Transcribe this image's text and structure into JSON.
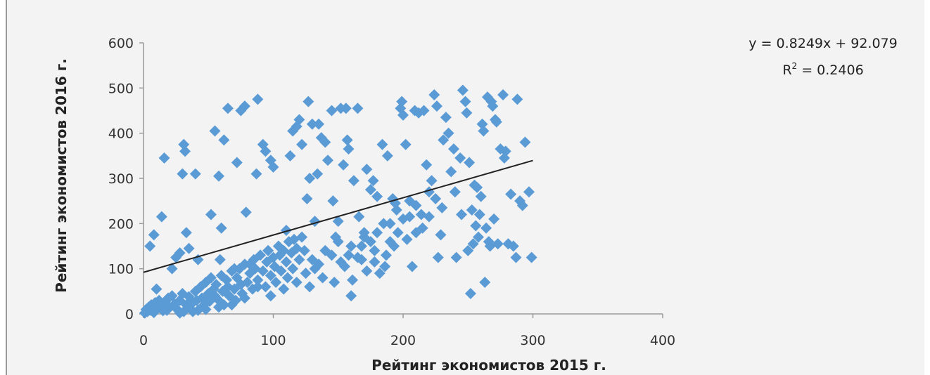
{
  "chart_data": {
    "type": "scatter",
    "title": "",
    "xlabel": "Рейтинг экономистов 2015 г.",
    "ylabel": "Рейтинг экономистов 2016 г.",
    "xlim": [
      0,
      400
    ],
    "ylim": [
      0,
      600
    ],
    "x_ticks": [
      "0",
      "100",
      "200",
      "300",
      "400"
    ],
    "y_ticks": [
      "0",
      "100",
      "200",
      "300",
      "400",
      "500",
      "600"
    ],
    "grid": false,
    "marker_color": "#5b9bd5",
    "trendline_color": "#222222",
    "trendline": {
      "slope": 0.8249,
      "intercept": 92.079,
      "x_range": [
        0,
        300
      ],
      "equation": "y = 0.8249x + 92.079",
      "r_squared_label": "R",
      "r_squared_exponent": "2",
      "r_squared_value": " = 0.2406"
    },
    "points": [
      [
        1,
        2
      ],
      [
        2,
        10
      ],
      [
        3,
        5
      ],
      [
        4,
        15
      ],
      [
        5,
        8
      ],
      [
        6,
        20
      ],
      [
        8,
        3
      ],
      [
        9,
        25
      ],
      [
        10,
        12
      ],
      [
        12,
        30
      ],
      [
        14,
        18
      ],
      [
        15,
        7
      ],
      [
        17,
        28
      ],
      [
        19,
        35
      ],
      [
        20,
        15
      ],
      [
        22,
        40
      ],
      [
        24,
        22
      ],
      [
        26,
        10
      ],
      [
        28,
        30
      ],
      [
        30,
        45
      ],
      [
        31,
        5
      ],
      [
        33,
        20
      ],
      [
        35,
        38
      ],
      [
        36,
        12
      ],
      [
        38,
        25
      ],
      [
        40,
        50
      ],
      [
        41,
        30
      ],
      [
        42,
        8
      ],
      [
        44,
        60
      ],
      [
        45,
        35
      ],
      [
        46,
        18
      ],
      [
        48,
        70
      ],
      [
        50,
        45
      ],
      [
        51,
        28
      ],
      [
        52,
        80
      ],
      [
        54,
        55
      ],
      [
        55,
        40
      ],
      [
        56,
        65
      ],
      [
        58,
        30
      ],
      [
        60,
        85
      ],
      [
        61,
        50
      ],
      [
        62,
        20
      ],
      [
        64,
        75
      ],
      [
        65,
        60
      ],
      [
        66,
        40
      ],
      [
        68,
        95
      ],
      [
        70,
        55
      ],
      [
        71,
        30
      ],
      [
        72,
        80
      ],
      [
        74,
        100
      ],
      [
        75,
        65
      ],
      [
        76,
        45
      ],
      [
        78,
        110
      ],
      [
        80,
        70
      ],
      [
        82,
        90
      ],
      [
        84,
        55
      ],
      [
        85,
        120
      ],
      [
        86,
        100
      ],
      [
        88,
        75
      ],
      [
        90,
        130
      ],
      [
        92,
        95
      ],
      [
        94,
        60
      ],
      [
        95,
        115
      ],
      [
        96,
        140
      ],
      [
        98,
        85
      ],
      [
        100,
        125
      ],
      [
        101,
        105
      ],
      [
        102,
        70
      ],
      [
        104,
        150
      ],
      [
        105,
        130
      ],
      [
        106,
        95
      ],
      [
        108,
        140
      ],
      [
        110,
        115
      ],
      [
        111,
        80
      ],
      [
        112,
        160
      ],
      [
        114,
        135
      ],
      [
        115,
        100
      ],
      [
        116,
        165
      ],
      [
        118,
        145
      ],
      [
        120,
        120
      ],
      [
        122,
        170
      ],
      [
        124,
        140
      ],
      [
        5,
        150
      ],
      [
        8,
        175
      ],
      [
        10,
        55
      ],
      [
        14,
        215
      ],
      [
        16,
        345
      ],
      [
        22,
        100
      ],
      [
        25,
        125
      ],
      [
        28,
        135
      ],
      [
        30,
        310
      ],
      [
        31,
        375
      ],
      [
        32,
        360
      ],
      [
        33,
        180
      ],
      [
        35,
        145
      ],
      [
        40,
        310
      ],
      [
        42,
        120
      ],
      [
        52,
        220
      ],
      [
        55,
        405
      ],
      [
        58,
        305
      ],
      [
        59,
        120
      ],
      [
        60,
        190
      ],
      [
        62,
        385
      ],
      [
        65,
        455
      ],
      [
        70,
        100
      ],
      [
        72,
        335
      ],
      [
        75,
        450
      ],
      [
        78,
        460
      ],
      [
        79,
        225
      ],
      [
        82,
        110
      ],
      [
        87,
        310
      ],
      [
        88,
        475
      ],
      [
        92,
        375
      ],
      [
        94,
        360
      ],
      [
        96,
        140
      ],
      [
        98,
        340
      ],
      [
        100,
        325
      ],
      [
        110,
        185
      ],
      [
        113,
        350
      ],
      [
        115,
        405
      ],
      [
        118,
        415
      ],
      [
        120,
        430
      ],
      [
        122,
        375
      ],
      [
        126,
        255
      ],
      [
        127,
        470
      ],
      [
        128,
        300
      ],
      [
        130,
        420
      ],
      [
        132,
        205
      ],
      [
        134,
        310
      ],
      [
        135,
        420
      ],
      [
        137,
        390
      ],
      [
        140,
        380
      ],
      [
        142,
        340
      ],
      [
        145,
        450
      ],
      [
        146,
        250
      ],
      [
        148,
        170
      ],
      [
        150,
        205
      ],
      [
        152,
        455
      ],
      [
        154,
        330
      ],
      [
        156,
        455
      ],
      [
        157,
        385
      ],
      [
        158,
        365
      ],
      [
        160,
        40
      ],
      [
        161,
        75
      ],
      [
        162,
        295
      ],
      [
        165,
        455
      ],
      [
        166,
        215
      ],
      [
        168,
        150
      ],
      [
        170,
        180
      ],
      [
        172,
        320
      ],
      [
        175,
        275
      ],
      [
        177,
        295
      ],
      [
        178,
        115
      ],
      [
        180,
        260
      ],
      [
        182,
        90
      ],
      [
        184,
        375
      ],
      [
        186,
        105
      ],
      [
        188,
        350
      ],
      [
        190,
        160
      ],
      [
        192,
        255
      ],
      [
        194,
        245
      ],
      [
        196,
        180
      ],
      [
        198,
        455
      ],
      [
        199,
        470
      ],
      [
        200,
        440
      ],
      [
        202,
        375
      ],
      [
        205,
        215
      ],
      [
        207,
        105
      ],
      [
        209,
        450
      ],
      [
        212,
        445
      ],
      [
        214,
        220
      ],
      [
        216,
        450
      ],
      [
        218,
        330
      ],
      [
        220,
        270
      ],
      [
        222,
        295
      ],
      [
        224,
        485
      ],
      [
        226,
        460
      ],
      [
        227,
        125
      ],
      [
        229,
        175
      ],
      [
        231,
        385
      ],
      [
        233,
        435
      ],
      [
        235,
        400
      ],
      [
        237,
        315
      ],
      [
        239,
        365
      ],
      [
        241,
        125
      ],
      [
        244,
        345
      ],
      [
        246,
        495
      ],
      [
        248,
        470
      ],
      [
        249,
        445
      ],
      [
        250,
        140
      ],
      [
        251,
        335
      ],
      [
        252,
        45
      ],
      [
        253,
        230
      ],
      [
        254,
        155
      ],
      [
        255,
        285
      ],
      [
        256,
        195
      ],
      [
        257,
        280
      ],
      [
        258,
        170
      ],
      [
        259,
        220
      ],
      [
        260,
        260
      ],
      [
        261,
        420
      ],
      [
        262,
        405
      ],
      [
        263,
        70
      ],
      [
        264,
        190
      ],
      [
        265,
        480
      ],
      [
        266,
        160
      ],
      [
        267,
        150
      ],
      [
        268,
        470
      ],
      [
        269,
        460
      ],
      [
        270,
        210
      ],
      [
        271,
        430
      ],
      [
        272,
        425
      ],
      [
        273,
        155
      ],
      [
        275,
        365
      ],
      [
        277,
        485
      ],
      [
        278,
        345
      ],
      [
        279,
        360
      ],
      [
        281,
        155
      ],
      [
        283,
        265
      ],
      [
        285,
        150
      ],
      [
        287,
        125
      ],
      [
        288,
        475
      ],
      [
        290,
        250
      ],
      [
        292,
        240
      ],
      [
        294,
        380
      ],
      [
        297,
        270
      ],
      [
        299,
        125
      ],
      [
        190,
        200
      ],
      [
        200,
        210
      ],
      [
        210,
        240
      ],
      [
        215,
        190
      ],
      [
        180,
        180
      ],
      [
        175,
        160
      ],
      [
        170,
        170
      ],
      [
        160,
        150
      ],
      [
        150,
        160
      ],
      [
        145,
        130
      ],
      [
        140,
        140
      ],
      [
        135,
        110
      ],
      [
        130,
        120
      ],
      [
        125,
        90
      ],
      [
        155,
        105
      ],
      [
        165,
        125
      ],
      [
        185,
        200
      ],
      [
        195,
        230
      ],
      [
        205,
        250
      ],
      [
        225,
        255
      ],
      [
        230,
        235
      ],
      [
        240,
        270
      ],
      [
        245,
        220
      ],
      [
        220,
        215
      ],
      [
        210,
        180
      ],
      [
        203,
        165
      ],
      [
        193,
        150
      ],
      [
        187,
        130
      ],
      [
        178,
        140
      ],
      [
        172,
        95
      ],
      [
        168,
        120
      ],
      [
        158,
        130
      ],
      [
        152,
        115
      ],
      [
        147,
        70
      ],
      [
        138,
        80
      ],
      [
        132,
        100
      ],
      [
        128,
        60
      ],
      [
        118,
        70
      ],
      [
        108,
        55
      ],
      [
        98,
        40
      ],
      [
        88,
        60
      ],
      [
        78,
        35
      ],
      [
        68,
        20
      ],
      [
        58,
        15
      ],
      [
        48,
        10
      ],
      [
        38,
        5
      ],
      [
        28,
        2
      ],
      [
        18,
        8
      ]
    ]
  }
}
